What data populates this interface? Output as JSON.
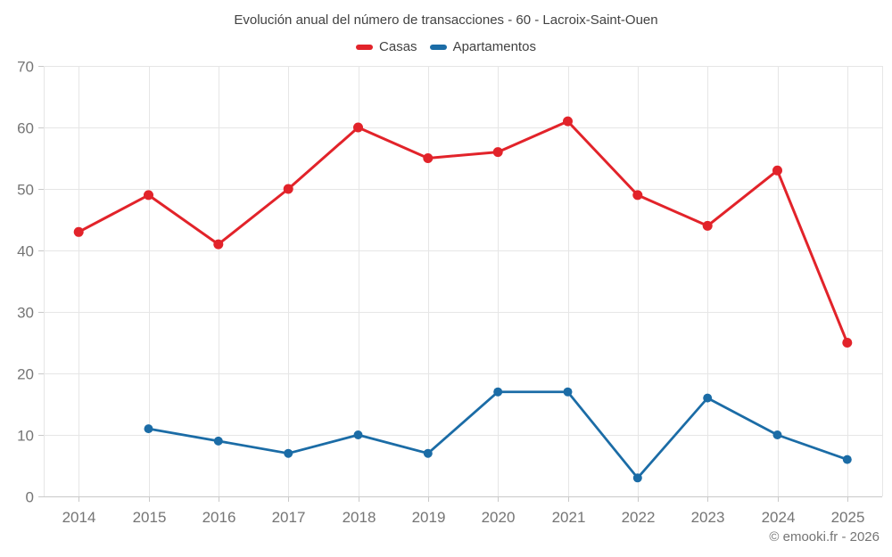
{
  "title": "Evolución anual del número de transacciones - 60 - Lacroix-Saint-Ouen",
  "copyright": "© emooki.fr - 2026",
  "chart_data": {
    "type": "line",
    "title": "Evolución anual del número de transacciones - 60 - Lacroix-Saint-Ouen",
    "categories": [
      "2014",
      "2015",
      "2016",
      "2017",
      "2018",
      "2019",
      "2020",
      "2021",
      "2022",
      "2023",
      "2024",
      "2025"
    ],
    "series": [
      {
        "name": "Casas",
        "color": "#e2232a",
        "marker_radius": 5.5,
        "line_width": 3,
        "values": [
          43,
          49,
          41,
          50,
          60,
          55,
          56,
          61,
          49,
          44,
          53,
          25
        ]
      },
      {
        "name": "Apartamentos",
        "color": "#1b6ca6",
        "marker_radius": 5,
        "line_width": 2.75,
        "values": [
          null,
          11,
          9,
          7,
          10,
          7,
          17,
          17,
          3,
          16,
          10,
          6
        ]
      }
    ],
    "ylim": [
      0,
      70
    ],
    "ytick_step": 10,
    "grid": true,
    "legend_position": "top",
    "colors": {
      "gridline": "#e6e6e6",
      "axis_line": "#c9c9c9",
      "tick_text": "#757575"
    }
  }
}
